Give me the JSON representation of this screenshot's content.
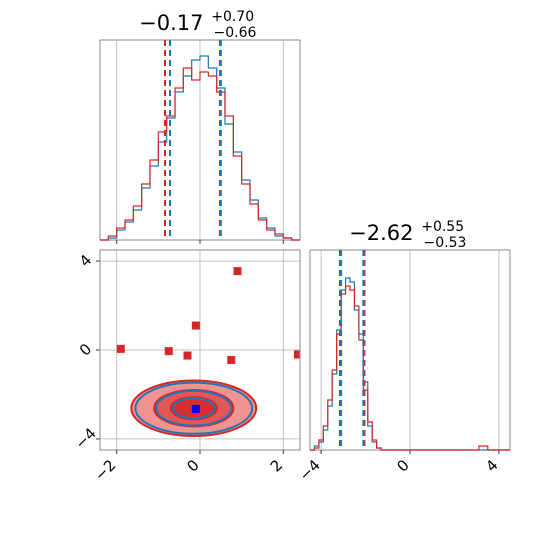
{
  "chart_data": [
    {
      "panel": "top-left",
      "type": "histogram",
      "title": {
        "value": "−0.17",
        "plus": "+0.70",
        "minus": "−0.66"
      },
      "xlim": [
        -2.4,
        2.4
      ],
      "ylim": [
        0,
        1.0
      ],
      "grid": true,
      "show_tick_labels": false,
      "vlines_red": [
        -0.84,
        0.5
      ],
      "vlines_blue": [
        -0.72,
        0.48
      ],
      "bins_x": [
        -2.4,
        -2.2,
        -2.0,
        -1.8,
        -1.6,
        -1.4,
        -1.2,
        -1.0,
        -0.8,
        -0.6,
        -0.4,
        -0.2,
        0.0,
        0.2,
        0.4,
        0.6,
        0.8,
        1.0,
        1.2,
        1.4,
        1.6,
        1.8,
        2.0,
        2.2
      ],
      "series": [
        {
          "color": "#1f77b4",
          "values": [
            0.0,
            0.01,
            0.05,
            0.09,
            0.15,
            0.26,
            0.37,
            0.49,
            0.61,
            0.74,
            0.82,
            0.9,
            0.92,
            0.86,
            0.76,
            0.58,
            0.44,
            0.3,
            0.2,
            0.11,
            0.06,
            0.02,
            0.01,
            0.0
          ]
        },
        {
          "color": "#d62728",
          "values": [
            0.0,
            0.02,
            0.06,
            0.1,
            0.17,
            0.28,
            0.4,
            0.54,
            0.62,
            0.76,
            0.86,
            0.8,
            0.84,
            0.82,
            0.74,
            0.62,
            0.42,
            0.28,
            0.18,
            0.1,
            0.05,
            0.03,
            0.01,
            0.0
          ]
        }
      ]
    },
    {
      "panel": "bottom-right",
      "type": "histogram",
      "title": {
        "value": "−2.62",
        "plus": "+0.55",
        "minus": "−0.53"
      },
      "xlim": [
        -4.5,
        4.5
      ],
      "ylim": [
        0,
        1.0
      ],
      "grid": true,
      "xticks": [
        -4,
        0,
        4
      ],
      "xtick_labels": [
        "−4",
        "0",
        "4"
      ],
      "vlines_red": [
        -3.15,
        -2.05
      ],
      "vlines_blue": [
        -3.1,
        -2.1
      ],
      "bins_x": [
        -4.5,
        -4.3,
        -4.1,
        -3.9,
        -3.7,
        -3.5,
        -3.3,
        -3.1,
        -2.9,
        -2.7,
        -2.5,
        -2.3,
        -2.1,
        -1.9,
        -1.7,
        -1.5,
        -1.3,
        3.1,
        3.5
      ],
      "series": [
        {
          "color": "#1f77b4",
          "values": [
            0.0,
            0.02,
            0.04,
            0.1,
            0.22,
            0.38,
            0.6,
            0.8,
            0.86,
            0.84,
            0.7,
            0.58,
            0.34,
            0.12,
            0.04,
            0.01,
            0.0,
            0.0,
            0.0
          ]
        },
        {
          "color": "#d62728",
          "values": [
            0.0,
            0.01,
            0.05,
            0.12,
            0.25,
            0.4,
            0.58,
            0.78,
            0.82,
            0.8,
            0.72,
            0.55,
            0.3,
            0.14,
            0.05,
            0.01,
            0.0,
            0.02,
            0.0
          ]
        }
      ]
    },
    {
      "panel": "bottom-left",
      "type": "scatter",
      "xlim": [
        -2.4,
        2.4
      ],
      "ylim": [
        -4.5,
        4.5
      ],
      "grid": true,
      "xticks": [
        -2,
        0,
        2
      ],
      "xtick_labels": [
        "−2",
        "0",
        "2"
      ],
      "yticks": [
        -4,
        0,
        4
      ],
      "ytick_labels": [
        "−4",
        "0",
        "4"
      ],
      "contour_center": [
        -0.15,
        -2.62
      ],
      "contours": [
        {
          "color": "#d62728",
          "fill": "#f08080",
          "rx": 1.5,
          "ry": 1.25
        },
        {
          "color": "#d62728",
          "fill": "#e34b4b",
          "rx": 0.95,
          "ry": 0.82
        },
        {
          "color": "#d62728",
          "fill": "#d62728",
          "rx": 0.55,
          "ry": 0.5
        },
        {
          "color": "#1f77b4",
          "fill": "none",
          "rx": 1.4,
          "ry": 1.15
        },
        {
          "color": "#1f77b4",
          "fill": "none",
          "rx": 0.9,
          "ry": 0.78
        },
        {
          "color": "#1f77b4",
          "fill": "none",
          "rx": 0.5,
          "ry": 0.45
        }
      ],
      "red_markers": [
        {
          "x": -1.9,
          "y": 0.05
        },
        {
          "x": -0.75,
          "y": -0.05
        },
        {
          "x": -0.3,
          "y": -0.25
        },
        {
          "x": -0.1,
          "y": 1.1
        },
        {
          "x": 0.75,
          "y": -0.45
        },
        {
          "x": 0.9,
          "y": 3.55
        },
        {
          "x": 2.35,
          "y": -0.2
        }
      ],
      "blue_marker": {
        "x": -0.1,
        "y": -2.65
      },
      "colors": {
        "red": "#d62728",
        "blue": "#1f77b4",
        "marker_blue": "#0000ff",
        "grid": "#b0b0b0"
      }
    }
  ]
}
